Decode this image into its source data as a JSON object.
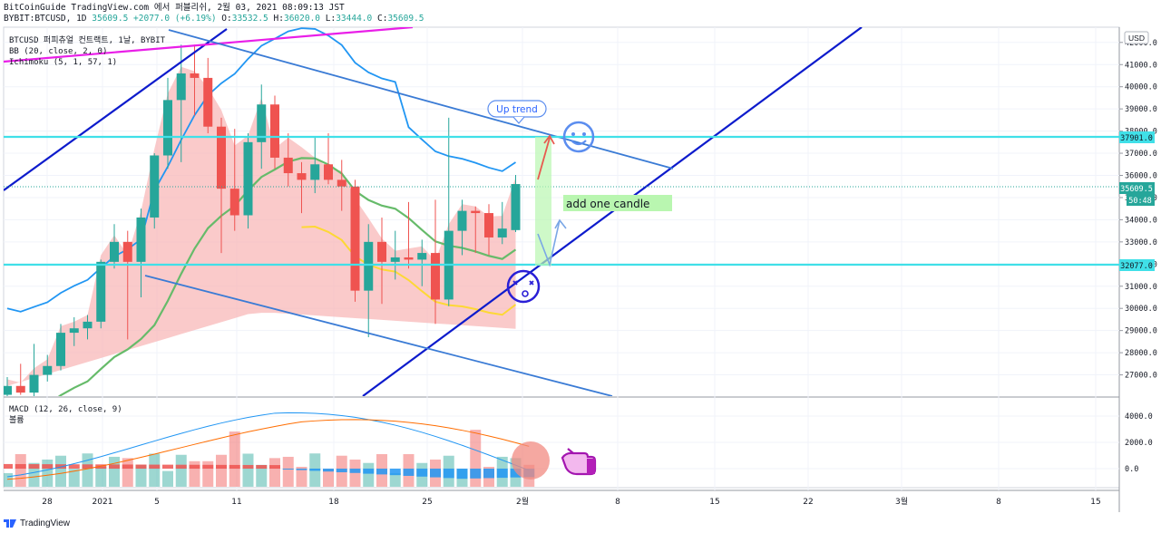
{
  "header": {
    "line1": "BitCoinGuide TradingView.com 에서 퍼블리쉬, 2월 03, 2021 08:09:13 JST",
    "symbol": "BYBIT:BTCUSD, 1D",
    "last": "35609.5",
    "change": "+2077.0 (+6.19%)",
    "o_label": "O:",
    "o": "33532.5",
    "h_label": "H:",
    "h": "36020.0",
    "l_label": "L:",
    "l": "33444.0",
    "c_label": "C:",
    "c": "35609.5"
  },
  "legend": {
    "title": "BTCUSD 퍼피츄얼 컨트랙트, 1날, BYBIT",
    "bb": "BB (20, close, 2, 0)",
    "ichimoku": "Ichimoku (5, 1, 57, 1)",
    "macd": "MACD (12, 26, close, 9)",
    "volume": "볼륨"
  },
  "currency_button": "USD",
  "annotations": {
    "uptrend_bubble": "Up trend",
    "add_candle": "add one candle"
  },
  "price_tags": {
    "resistance": "37901.0",
    "last": "35609.5",
    "countdown": "50:48",
    "support": "32077.0"
  },
  "footer": {
    "brand": "TradingView"
  },
  "colors": {
    "up": "#26a69a",
    "down": "#ef5350",
    "cloud": "#f8b4b4",
    "bb_upper": "#2196f3",
    "bb_mid": "#66bb6a",
    "tenkan": "#fdd835",
    "channel": "#0d1bcc",
    "trend": "#3a7bd5",
    "hline": "#40e0e8",
    "magenta": "#e91ee8"
  },
  "chart_data": {
    "type": "candlestick",
    "y_ticks": [
      27000,
      28000,
      29000,
      30000,
      31000,
      32000,
      33000,
      34000,
      35000,
      36000,
      37000,
      38000,
      39000,
      40000,
      41000,
      42000
    ],
    "ylim": [
      26200,
      42700
    ],
    "x_ticks": [
      "28",
      "2021",
      "5",
      "11",
      "18",
      "25",
      "2월",
      "8",
      "15",
      "22",
      "3월",
      "8",
      "15"
    ],
    "candles": [
      {
        "o": 26100,
        "h": 26900,
        "l": 25900,
        "c": 26500
      },
      {
        "o": 26500,
        "h": 27500,
        "l": 26100,
        "c": 26200
      },
      {
        "o": 26200,
        "h": 28400,
        "l": 26000,
        "c": 27000
      },
      {
        "o": 27000,
        "h": 27900,
        "l": 26700,
        "c": 27400
      },
      {
        "o": 27400,
        "h": 29300,
        "l": 27200,
        "c": 28900
      },
      {
        "o": 28900,
        "h": 29600,
        "l": 28300,
        "c": 29100
      },
      {
        "o": 29100,
        "h": 29700,
        "l": 28600,
        "c": 29400
      },
      {
        "o": 29400,
        "h": 32200,
        "l": 29100,
        "c": 32100
      },
      {
        "o": 32100,
        "h": 33800,
        "l": 31800,
        "c": 33000
      },
      {
        "o": 33000,
        "h": 33500,
        "l": 28600,
        "c": 32100
      },
      {
        "o": 32100,
        "h": 34500,
        "l": 30500,
        "c": 34100
      },
      {
        "o": 34100,
        "h": 37000,
        "l": 33600,
        "c": 36900
      },
      {
        "o": 36900,
        "h": 40400,
        "l": 36300,
        "c": 39400
      },
      {
        "o": 39400,
        "h": 41900,
        "l": 36600,
        "c": 40600
      },
      {
        "o": 40600,
        "h": 41900,
        "l": 38700,
        "c": 40400
      },
      {
        "o": 40400,
        "h": 41300,
        "l": 37900,
        "c": 38200
      },
      {
        "o": 38200,
        "h": 38600,
        "l": 32500,
        "c": 35400
      },
      {
        "o": 35400,
        "h": 38100,
        "l": 33500,
        "c": 34200
      },
      {
        "o": 34200,
        "h": 37900,
        "l": 33600,
        "c": 37500
      },
      {
        "o": 37500,
        "h": 40100,
        "l": 36300,
        "c": 39200
      },
      {
        "o": 39200,
        "h": 39600,
        "l": 36300,
        "c": 36800
      },
      {
        "o": 36800,
        "h": 37900,
        "l": 35500,
        "c": 36100
      },
      {
        "o": 36100,
        "h": 36600,
        "l": 34300,
        "c": 35800
      },
      {
        "o": 35800,
        "h": 37700,
        "l": 35200,
        "c": 36500
      },
      {
        "o": 36500,
        "h": 37900,
        "l": 35600,
        "c": 35800
      },
      {
        "o": 35800,
        "h": 36700,
        "l": 34400,
        "c": 35500
      },
      {
        "o": 35500,
        "h": 35800,
        "l": 30300,
        "c": 30800
      },
      {
        "o": 30800,
        "h": 33800,
        "l": 28700,
        "c": 33000
      },
      {
        "o": 33000,
        "h": 34100,
        "l": 30200,
        "c": 32100
      },
      {
        "o": 32100,
        "h": 33500,
        "l": 31300,
        "c": 32300
      },
      {
        "o": 32300,
        "h": 34800,
        "l": 31800,
        "c": 32200
      },
      {
        "o": 32200,
        "h": 33100,
        "l": 31000,
        "c": 32500
      },
      {
        "o": 32500,
        "h": 34900,
        "l": 29300,
        "c": 30400
      },
      {
        "o": 30400,
        "h": 38600,
        "l": 30100,
        "c": 33500
      },
      {
        "o": 33500,
        "h": 34900,
        "l": 32400,
        "c": 34400
      },
      {
        "o": 34400,
        "h": 34600,
        "l": 32500,
        "c": 34300
      },
      {
        "o": 34300,
        "h": 34700,
        "l": 32400,
        "c": 33200
      },
      {
        "o": 33200,
        "h": 34800,
        "l": 32900,
        "c": 33600
      },
      {
        "o": 33532.5,
        "h": 36020,
        "l": 33444,
        "c": 35609.5
      }
    ],
    "macd_ticks": [
      4000,
      2000,
      0
    ]
  }
}
